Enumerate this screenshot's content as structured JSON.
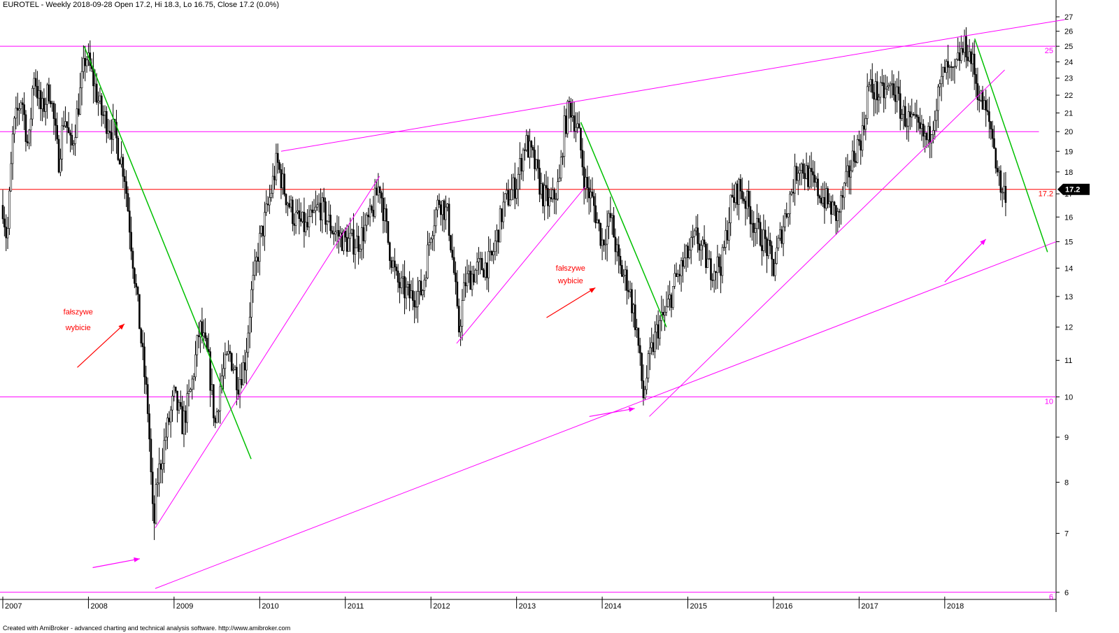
{
  "header": {
    "title": "EUROTEL - Weekly 2018-09-28 Open 17.2, Hi 18.3, Lo 16.75, Close 17.2 (0.0%)"
  },
  "footer": {
    "credit": "Created with AmiBroker - advanced charting and technical analysis software. http://www.amibroker.com"
  },
  "colors": {
    "background": "#ffffff",
    "candles": "#000000",
    "support_resistance": "#ff00ff",
    "downtrend": "#00c000",
    "price_line": "#ff0000",
    "annotation": "#ff0000",
    "price_tag_bg": "#000000",
    "price_tag_fg": "#ffffff"
  },
  "chart_data": {
    "type": "candlestick",
    "interval": "weekly",
    "y_scale": "log",
    "ylim": [
      5.9,
      27.5
    ],
    "xlim": [
      2007.0,
      2019.3
    ],
    "y_ticks": [
      6,
      7,
      8,
      9,
      10,
      11,
      12,
      13,
      14,
      15,
      16,
      17,
      18,
      19,
      20,
      21,
      22,
      23,
      24,
      25,
      26,
      27
    ],
    "x_ticks": [
      {
        "year": 2007,
        "label": "2007"
      },
      {
        "year": 2008,
        "label": "2008"
      },
      {
        "year": 2009,
        "label": "2009"
      },
      {
        "year": 2010,
        "label": "2010"
      },
      {
        "year": 2011,
        "label": "2011"
      },
      {
        "year": 2012,
        "label": "2012"
      },
      {
        "year": 2013,
        "label": "2013"
      },
      {
        "year": 2014,
        "label": "2014"
      },
      {
        "year": 2015,
        "label": "2015"
      },
      {
        "year": 2016,
        "label": "2016"
      },
      {
        "year": 2017,
        "label": "2017"
      },
      {
        "year": 2018,
        "label": "2018"
      }
    ],
    "last_close": {
      "value": 17.2,
      "label": "17.2"
    },
    "horizontal_levels": [
      {
        "value": 25,
        "label": "25",
        "color": "#ff00ff"
      },
      {
        "value": 20,
        "label": "",
        "color": "#ff00ff"
      },
      {
        "value": 10,
        "label": "10",
        "color": "#ff00ff"
      },
      {
        "value": 6,
        "label": "6",
        "color": "#ff00ff"
      }
    ],
    "price_path": [
      {
        "x": 2007.0,
        "y": 16.5
      },
      {
        "x": 2007.05,
        "y": 15.0
      },
      {
        "x": 2007.12,
        "y": 20.0
      },
      {
        "x": 2007.22,
        "y": 22.0
      },
      {
        "x": 2007.3,
        "y": 19.0
      },
      {
        "x": 2007.36,
        "y": 23.5
      },
      {
        "x": 2007.45,
        "y": 21.0
      },
      {
        "x": 2007.55,
        "y": 22.5
      },
      {
        "x": 2007.65,
        "y": 18.5
      },
      {
        "x": 2007.72,
        "y": 21.0
      },
      {
        "x": 2007.8,
        "y": 19.0
      },
      {
        "x": 2007.9,
        "y": 22.0
      },
      {
        "x": 2007.97,
        "y": 24.5
      },
      {
        "x": 2008.05,
        "y": 23.0
      },
      {
        "x": 2008.15,
        "y": 21.0
      },
      {
        "x": 2008.3,
        "y": 20.0
      },
      {
        "x": 2008.42,
        "y": 18.0
      },
      {
        "x": 2008.5,
        "y": 15.0
      },
      {
        "x": 2008.6,
        "y": 12.0
      },
      {
        "x": 2008.7,
        "y": 9.5
      },
      {
        "x": 2008.76,
        "y": 7.0
      },
      {
        "x": 2008.8,
        "y": 8.0
      },
      {
        "x": 2008.9,
        "y": 9.0
      },
      {
        "x": 2009.0,
        "y": 10.0
      },
      {
        "x": 2009.1,
        "y": 9.3
      },
      {
        "x": 2009.2,
        "y": 10.2
      },
      {
        "x": 2009.3,
        "y": 12.0
      },
      {
        "x": 2009.4,
        "y": 11.0
      },
      {
        "x": 2009.48,
        "y": 9.3
      },
      {
        "x": 2009.55,
        "y": 10.5
      },
      {
        "x": 2009.65,
        "y": 11.2
      },
      {
        "x": 2009.75,
        "y": 10.4
      },
      {
        "x": 2009.83,
        "y": 11.0
      },
      {
        "x": 2009.9,
        "y": 13.0
      },
      {
        "x": 2010.0,
        "y": 15.0
      },
      {
        "x": 2010.1,
        "y": 16.5
      },
      {
        "x": 2010.2,
        "y": 18.5
      },
      {
        "x": 2010.3,
        "y": 17.0
      },
      {
        "x": 2010.4,
        "y": 16.0
      },
      {
        "x": 2010.55,
        "y": 15.5
      },
      {
        "x": 2010.7,
        "y": 16.5
      },
      {
        "x": 2010.85,
        "y": 15.5
      },
      {
        "x": 2011.0,
        "y": 15.0
      },
      {
        "x": 2011.15,
        "y": 15.0
      },
      {
        "x": 2011.3,
        "y": 16.0
      },
      {
        "x": 2011.4,
        "y": 17.5
      },
      {
        "x": 2011.5,
        "y": 15.0
      },
      {
        "x": 2011.6,
        "y": 13.5
      },
      {
        "x": 2011.75,
        "y": 13.0
      },
      {
        "x": 2011.9,
        "y": 13.2
      },
      {
        "x": 2012.0,
        "y": 15.5
      },
      {
        "x": 2012.1,
        "y": 16.8
      },
      {
        "x": 2012.2,
        "y": 16.0
      },
      {
        "x": 2012.28,
        "y": 13.5
      },
      {
        "x": 2012.32,
        "y": 11.8
      },
      {
        "x": 2012.4,
        "y": 13.5
      },
      {
        "x": 2012.55,
        "y": 14.0
      },
      {
        "x": 2012.7,
        "y": 14.2
      },
      {
        "x": 2012.85,
        "y": 16.5
      },
      {
        "x": 2013.0,
        "y": 17.5
      },
      {
        "x": 2013.1,
        "y": 19.5
      },
      {
        "x": 2013.2,
        "y": 18.5
      },
      {
        "x": 2013.3,
        "y": 17.0
      },
      {
        "x": 2013.4,
        "y": 16.5
      },
      {
        "x": 2013.5,
        "y": 17.5
      },
      {
        "x": 2013.55,
        "y": 20.0
      },
      {
        "x": 2013.62,
        "y": 21.5
      },
      {
        "x": 2013.72,
        "y": 20.0
      },
      {
        "x": 2013.8,
        "y": 17.5
      },
      {
        "x": 2013.9,
        "y": 16.5
      },
      {
        "x": 2014.0,
        "y": 15.0
      },
      {
        "x": 2014.1,
        "y": 16.0
      },
      {
        "x": 2014.2,
        "y": 14.0
      },
      {
        "x": 2014.3,
        "y": 13.5
      },
      {
        "x": 2014.4,
        "y": 12.0
      },
      {
        "x": 2014.48,
        "y": 10.0
      },
      {
        "x": 2014.55,
        "y": 11.0
      },
      {
        "x": 2014.65,
        "y": 12.0
      },
      {
        "x": 2014.75,
        "y": 12.5
      },
      {
        "x": 2014.85,
        "y": 13.5
      },
      {
        "x": 2015.0,
        "y": 14.5
      },
      {
        "x": 2015.1,
        "y": 15.2
      },
      {
        "x": 2015.25,
        "y": 14.0
      },
      {
        "x": 2015.4,
        "y": 14.2
      },
      {
        "x": 2015.5,
        "y": 16.5
      },
      {
        "x": 2015.6,
        "y": 17.3
      },
      {
        "x": 2015.7,
        "y": 16.5
      },
      {
        "x": 2015.8,
        "y": 15.5
      },
      {
        "x": 2015.9,
        "y": 15.0
      },
      {
        "x": 2016.0,
        "y": 14.0
      },
      {
        "x": 2016.1,
        "y": 15.5
      },
      {
        "x": 2016.2,
        "y": 17.0
      },
      {
        "x": 2016.3,
        "y": 18.5
      },
      {
        "x": 2016.45,
        "y": 17.5
      },
      {
        "x": 2016.55,
        "y": 17.0
      },
      {
        "x": 2016.65,
        "y": 16.5
      },
      {
        "x": 2016.75,
        "y": 16.0
      },
      {
        "x": 2016.85,
        "y": 17.5
      },
      {
        "x": 2016.95,
        "y": 19.0
      },
      {
        "x": 2017.05,
        "y": 20.0
      },
      {
        "x": 2017.1,
        "y": 22.5
      },
      {
        "x": 2017.25,
        "y": 22.0
      },
      {
        "x": 2017.4,
        "y": 22.5
      },
      {
        "x": 2017.5,
        "y": 21.0
      },
      {
        "x": 2017.6,
        "y": 20.5
      },
      {
        "x": 2017.7,
        "y": 20.0
      },
      {
        "x": 2017.8,
        "y": 19.5
      },
      {
        "x": 2017.9,
        "y": 21.5
      },
      {
        "x": 2018.0,
        "y": 23.5
      },
      {
        "x": 2018.1,
        "y": 23.0
      },
      {
        "x": 2018.18,
        "y": 24.5
      },
      {
        "x": 2018.25,
        "y": 25.0
      },
      {
        "x": 2018.32,
        "y": 24.0
      },
      {
        "x": 2018.4,
        "y": 22.0
      },
      {
        "x": 2018.48,
        "y": 21.0
      },
      {
        "x": 2018.55,
        "y": 20.0
      },
      {
        "x": 2018.6,
        "y": 18.5
      },
      {
        "x": 2018.67,
        "y": 17.0
      },
      {
        "x": 2018.72,
        "y": 17.2
      }
    ],
    "trendlines": [
      {
        "color": "#ff00ff",
        "points": [
          {
            "x": 2008.78,
            "y": 6.06
          },
          {
            "x": 2019.3,
            "y": 15.0
          }
        ]
      },
      {
        "color": "#ff00ff",
        "points": [
          {
            "x": 2010.25,
            "y": 19.0
          },
          {
            "x": 2018.25,
            "y": 25.7
          },
          {
            "x": 2019.4,
            "y": 26.8
          }
        ]
      },
      {
        "color": "#ff00ff",
        "points": [
          {
            "x": 2008.78,
            "y": 7.1
          },
          {
            "x": 2011.4,
            "y": 17.8
          }
        ]
      },
      {
        "color": "#ff00ff",
        "points": [
          {
            "x": 2012.3,
            "y": 11.5
          },
          {
            "x": 2013.8,
            "y": 17.3
          }
        ]
      },
      {
        "color": "#ff00ff",
        "points": [
          {
            "x": 2014.55,
            "y": 9.5
          },
          {
            "x": 2018.7,
            "y": 23.5
          }
        ]
      },
      {
        "color": "#00c000",
        "points": [
          {
            "x": 2007.95,
            "y": 25.0
          },
          {
            "x": 2009.9,
            "y": 8.5
          }
        ]
      },
      {
        "color": "#00c000",
        "points": [
          {
            "x": 2013.75,
            "y": 20.5
          },
          {
            "x": 2014.75,
            "y": 12.0
          }
        ]
      },
      {
        "color": "#00c000",
        "points": [
          {
            "x": 2018.35,
            "y": 25.5
          },
          {
            "x": 2019.2,
            "y": 14.6
          }
        ]
      }
    ],
    "arrows": [
      {
        "color": "#ff0000",
        "from": {
          "x": 2007.87,
          "y": 10.8
        },
        "to": {
          "x": 2008.42,
          "y": 12.1
        }
      },
      {
        "color": "#ff0000",
        "from": {
          "x": 2013.35,
          "y": 12.3
        },
        "to": {
          "x": 2013.92,
          "y": 13.3
        }
      },
      {
        "color": "#ff00ff",
        "from": {
          "x": 2008.05,
          "y": 6.4
        },
        "to": {
          "x": 2008.6,
          "y": 6.55
        }
      },
      {
        "color": "#ff00ff",
        "from": {
          "x": 2013.85,
          "y": 9.5
        },
        "to": {
          "x": 2014.38,
          "y": 9.7
        }
      },
      {
        "color": "#ff00ff",
        "from": {
          "x": 2018.0,
          "y": 13.5
        },
        "to": {
          "x": 2018.48,
          "y": 15.1
        }
      }
    ],
    "annotations": [
      {
        "text": "fałszywe",
        "x": 2007.88,
        "y": 12.4,
        "color": "#ff0000"
      },
      {
        "text": "wybicie",
        "x": 2007.88,
        "y": 11.9,
        "color": "#ff0000"
      },
      {
        "text": "fałszywe",
        "x": 2013.63,
        "y": 13.9,
        "color": "#ff0000"
      },
      {
        "text": "wybicie",
        "x": 2013.63,
        "y": 13.45,
        "color": "#ff0000"
      }
    ]
  }
}
